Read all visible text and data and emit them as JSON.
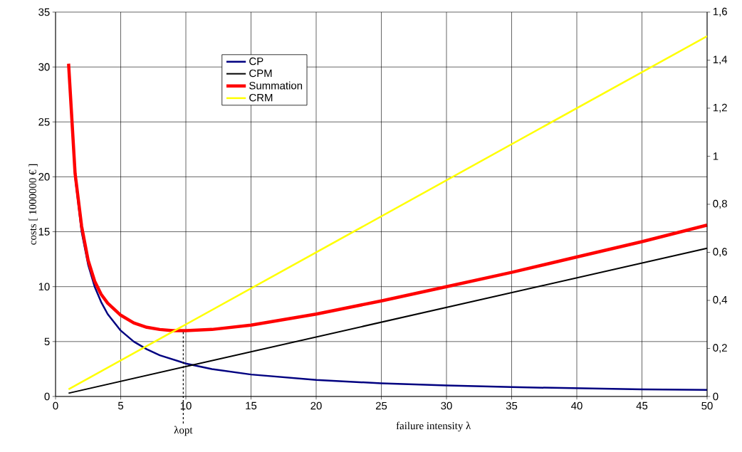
{
  "chart_data": {
    "type": "line",
    "xlabel": "failure intensity λ",
    "ylabel": "costs [ 1000000 € ]",
    "xlim": [
      0,
      50
    ],
    "xticks": [
      0,
      5,
      10,
      15,
      20,
      25,
      30,
      35,
      40,
      45,
      50
    ],
    "ylim": [
      0,
      35
    ],
    "yticks": [
      0,
      5,
      10,
      15,
      20,
      25,
      30,
      35
    ],
    "y2lim": [
      0,
      1.6
    ],
    "y2ticks": [
      0,
      {
        "value": 0.2,
        "label": "0,2"
      },
      {
        "value": 0.4,
        "label": "0,4"
      },
      {
        "value": 0.6,
        "label": "0,6"
      },
      {
        "value": 0.8,
        "label": "0,8"
      },
      1,
      {
        "value": 1.2,
        "label": "1,2"
      },
      {
        "value": 1.4,
        "label": "1,4"
      },
      {
        "value": 1.6,
        "label": "1,6"
      }
    ],
    "grid": true,
    "legend": "top",
    "marker": "none",
    "line_style": "solid",
    "ref_lines": [
      {
        "axis": "x",
        "value": 9.8,
        "label": "λopt",
        "line_style": "dashed",
        "color": "#000000"
      }
    ],
    "series": [
      {
        "name": "CP",
        "color": "#000080",
        "x": [
          1.5,
          2,
          2.5,
          3,
          3.5,
          4,
          5,
          6,
          7,
          8,
          10,
          12,
          15,
          20,
          25,
          30,
          35,
          40,
          45,
          50
        ],
        "values": [
          20,
          15,
          12,
          10,
          8.6,
          7.5,
          6,
          5,
          4.3,
          3.75,
          3,
          2.5,
          2,
          1.5,
          1.2,
          1,
          0.85,
          0.75,
          0.65,
          0.6
        ]
      },
      {
        "name": "CPM",
        "color": "#000000",
        "x": [
          1,
          50
        ],
        "values": [
          0.3,
          13.5
        ]
      },
      {
        "name": "Summation",
        "color": "#ff0000",
        "x": [
          1,
          1.5,
          2,
          2.5,
          3,
          3.5,
          4,
          5,
          6,
          7,
          8,
          9,
          10,
          12,
          15,
          20,
          25,
          30,
          35,
          40,
          45,
          50
        ],
        "values": [
          30.3,
          20.3,
          15.5,
          12.4,
          10.5,
          9.3,
          8.5,
          7.4,
          6.7,
          6.3,
          6.1,
          6.0,
          6.0,
          6.1,
          6.5,
          7.5,
          8.7,
          10.0,
          11.3,
          12.7,
          14.1,
          15.6
        ]
      },
      {
        "name": "CRM",
        "color": "#ffff00",
        "axis": "y2",
        "x": [
          1,
          50
        ],
        "values": [
          0.03,
          1.5
        ]
      }
    ]
  }
}
